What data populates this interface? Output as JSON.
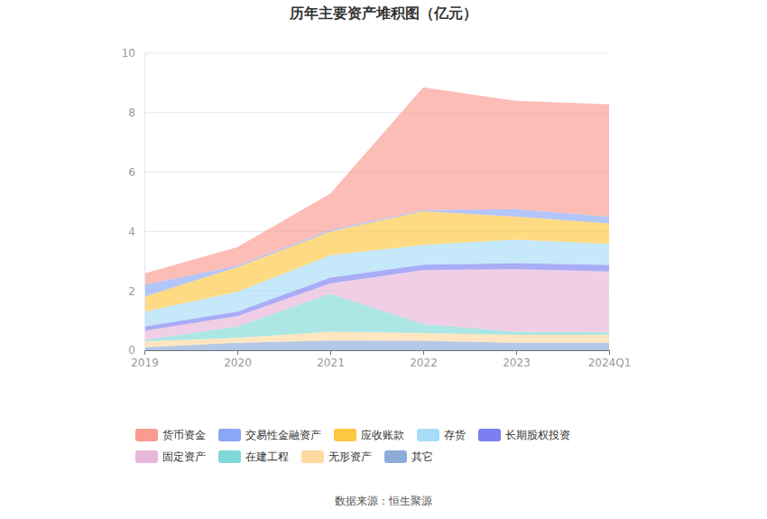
{
  "chart_data": {
    "type": "area",
    "title": "历年主要资产堆积图（亿元）",
    "annotations": [
      "数据来源：恒生聚源"
    ],
    "categories": [
      "2019",
      "2020",
      "2021",
      "2022",
      "2023",
      "2024Q1"
    ],
    "stacked": true,
    "grid": true,
    "legend": "bottom",
    "ylim": [
      0,
      10
    ],
    "yticks": [
      0,
      2,
      4,
      6,
      8,
      10
    ],
    "series": [
      {
        "name": "货币资金",
        "color": "#fb9a8f",
        "values": [
          0.38,
          0.62,
          1.22,
          4.13,
          3.65,
          3.78
        ]
      },
      {
        "name": "交易性金融资产",
        "color": "#8aa6f6",
        "values": [
          0.4,
          0.05,
          0.05,
          0.04,
          0.25,
          0.23
        ]
      },
      {
        "name": "应收账款",
        "color": "#fdc73f",
        "values": [
          0.5,
          0.83,
          0.8,
          1.13,
          0.78,
          0.69
        ]
      },
      {
        "name": "存货",
        "color": "#a6dcf7",
        "values": [
          0.5,
          0.67,
          0.75,
          0.67,
          0.79,
          0.71
        ]
      },
      {
        "name": "长期股权投资",
        "color": "#7b7ff1",
        "values": [
          0.15,
          0.15,
          0.2,
          0.18,
          0.2,
          0.22
        ]
      },
      {
        "name": "固定资产",
        "color": "#e8b6d8",
        "values": [
          0.3,
          0.35,
          0.35,
          1.82,
          2.11,
          2.05
        ]
      },
      {
        "name": "在建工程",
        "color": "#80d9d7",
        "values": [
          0.05,
          0.38,
          1.28,
          0.3,
          0.1,
          0.08
        ]
      },
      {
        "name": "无形资产",
        "color": "#ffd99f",
        "values": [
          0.2,
          0.17,
          0.29,
          0.26,
          0.27,
          0.27
        ]
      },
      {
        "name": "其它",
        "color": "#8eacd9",
        "values": [
          0.1,
          0.25,
          0.33,
          0.32,
          0.25,
          0.25
        ]
      }
    ]
  }
}
